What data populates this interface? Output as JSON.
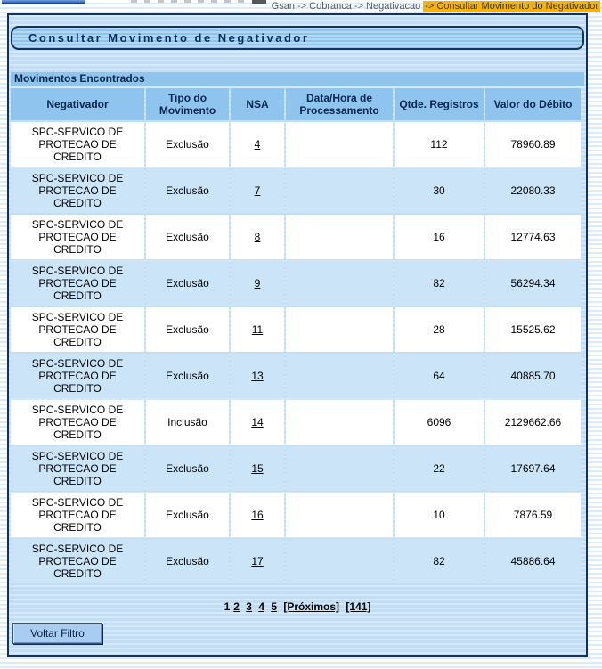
{
  "breadcrumb": {
    "path": "Gsan -> Cobranca -> Negativacao ",
    "current": "-> Consultar Movimento do Negativador"
  },
  "page": {
    "title": "Consultar Movimento de Negativador"
  },
  "table": {
    "caption": "Movimentos Encontrados",
    "columns": [
      "Negativador",
      "Tipo do Movimento",
      "NSA",
      "Data/Hora de Processamento",
      "Qtde. Registros",
      "Valor do Débito"
    ],
    "rows": [
      {
        "negativador": "SPC-SERVICO DE PROTECAO DE CREDITO",
        "tipo": "Exclusão",
        "nsa": "4",
        "data_hora": "",
        "qtde": "112",
        "valor": "78960.89"
      },
      {
        "negativador": "SPC-SERVICO DE PROTECAO DE CREDITO",
        "tipo": "Exclusão",
        "nsa": "7",
        "data_hora": "",
        "qtde": "30",
        "valor": "22080.33"
      },
      {
        "negativador": "SPC-SERVICO DE PROTECAO DE CREDITO",
        "tipo": "Exclusão",
        "nsa": "8",
        "data_hora": "",
        "qtde": "16",
        "valor": "12774.63"
      },
      {
        "negativador": "SPC-SERVICO DE PROTECAO DE CREDITO",
        "tipo": "Exclusão",
        "nsa": "9",
        "data_hora": "",
        "qtde": "82",
        "valor": "56294.34"
      },
      {
        "negativador": "SPC-SERVICO DE PROTECAO DE CREDITO",
        "tipo": "Exclusão",
        "nsa": "11",
        "data_hora": "",
        "qtde": "28",
        "valor": "15525.62"
      },
      {
        "negativador": "SPC-SERVICO DE PROTECAO DE CREDITO",
        "tipo": "Exclusão",
        "nsa": "13",
        "data_hora": "",
        "qtde": "64",
        "valor": "40885.70"
      },
      {
        "negativador": "SPC-SERVICO DE PROTECAO DE CREDITO",
        "tipo": "Inclusão",
        "nsa": "14",
        "data_hora": "",
        "qtde": "6096",
        "valor": "2129662.66"
      },
      {
        "negativador": "SPC-SERVICO DE PROTECAO DE CREDITO",
        "tipo": "Exclusão",
        "nsa": "15",
        "data_hora": "",
        "qtde": "22",
        "valor": "17697.64"
      },
      {
        "negativador": "SPC-SERVICO DE PROTECAO DE CREDITO",
        "tipo": "Exclusão",
        "nsa": "16",
        "data_hora": "",
        "qtde": "10",
        "valor": "7876.59"
      },
      {
        "negativador": "SPC-SERVICO DE PROTECAO DE CREDITO",
        "tipo": "Exclusão",
        "nsa": "17",
        "data_hora": "",
        "qtde": "82",
        "valor": "45886.64"
      }
    ]
  },
  "pagination": {
    "current": "1",
    "pages": [
      "2",
      "3",
      "4",
      "5"
    ],
    "next_label": "[Próximos]",
    "last_label": "[141]"
  },
  "actions": {
    "voltar_filtro": "Voltar Filtro"
  },
  "colors": {
    "header_blue": "#8fc4ee",
    "row_alt_blue": "#cbe4f8",
    "panel_border": "#11315f",
    "breadcrumb_highlight": "#f5b400",
    "button_blue": "#a9cdf1"
  }
}
